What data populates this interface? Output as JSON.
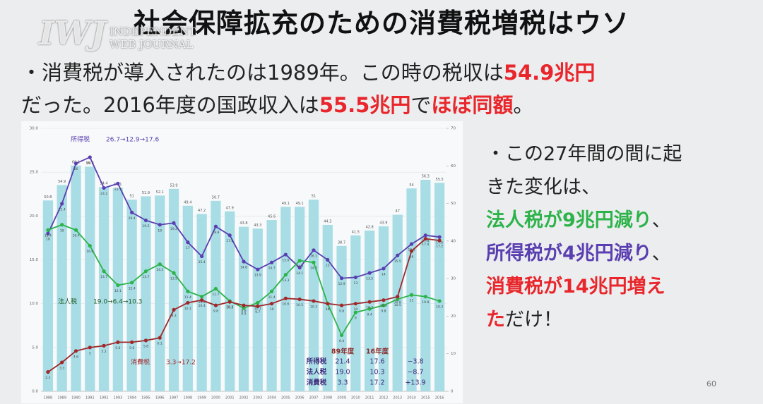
{
  "logo": {
    "mark": "IWJ",
    "line1": "INDEPENDENT",
    "line2": "WEB JOURNAL"
  },
  "title": "社会保障拡充のための消費税増税はウソ",
  "intro": [
    [
      {
        "text": "・消費税が導入されたのは1989年。この時の税収は"
      },
      {
        "text": "54.9兆円",
        "color": "#e8262b"
      }
    ],
    [
      {
        "text": "だった。2016年度の国政収入は"
      },
      {
        "text": "55.5兆円",
        "color": "#e8262b"
      },
      {
        "text": "で"
      },
      {
        "text": "ほぼ同額",
        "color": "#e8262b"
      },
      {
        "text": "。"
      }
    ]
  ],
  "side": [
    [
      {
        "text": "・この27年間の間に起"
      }
    ],
    [
      {
        "text": "きた変化は、"
      }
    ],
    [
      {
        "text": "法人税が9兆円減り",
        "color": "#2db34a"
      },
      {
        "text": "、"
      }
    ],
    [
      {
        "text": "所得税が4兆円減り",
        "color": "#5a3fb0"
      },
      {
        "text": "、"
      }
    ],
    [
      {
        "text": "消費税が14兆円増え",
        "color": "#e8262b"
      }
    ],
    [
      {
        "text": "た",
        "color": "#e8262b"
      },
      {
        "text": "だけ！"
      }
    ]
  ],
  "page_number": "60",
  "chart_data": {
    "type": "combo",
    "categories": [
      "1988",
      "1989",
      "1990",
      "1991",
      "1992",
      "1993",
      "1994",
      "1995",
      "1996",
      "1997",
      "1998",
      "1999",
      "2000",
      "2001",
      "2002",
      "2003",
      "2004",
      "2005",
      "2006",
      "2007",
      "2008",
      "2009",
      "2010",
      "2011",
      "2012",
      "2013",
      "2014",
      "2015",
      "2016"
    ],
    "series": [
      {
        "type": "bar",
        "axis": "y2",
        "color": "#a8dde6",
        "values": [
          50.8,
          54.9,
          60.1,
          59.8,
          54.4,
          54.1,
          51.0,
          51.9,
          52.1,
          53.9,
          49.4,
          47.2,
          50.7,
          47.9,
          43.8,
          43.3,
          45.6,
          49.1,
          49.1,
          51.0,
          44.3,
          38.7,
          41.5,
          42.8,
          43.9,
          47.0,
          54.0,
          56.3,
          55.5
        ]
      },
      {
        "type": "line",
        "color": "#5a3fb0",
        "values": [
          18.0,
          21.4,
          26.0,
          26.7,
          23.2,
          23.7,
          20.4,
          19.5,
          19.0,
          19.2,
          17.0,
          15.4,
          18.8,
          17.8,
          14.8,
          13.9,
          14.7,
          15.6,
          14.1,
          16.1,
          15.0,
          12.9,
          13.0,
          13.5,
          14.0,
          15.5,
          16.8,
          17.8,
          17.6
        ]
      },
      {
        "type": "line",
        "color": "#2db34a",
        "values": [
          18.4,
          19.0,
          18.4,
          16.6,
          13.7,
          12.1,
          12.4,
          13.7,
          14.5,
          13.5,
          11.4,
          10.8,
          11.7,
          10.3,
          9.5,
          10.1,
          11.4,
          13.3,
          14.9,
          14.7,
          10.0,
          6.4,
          9.0,
          9.4,
          9.8,
          10.5,
          11.0,
          10.8,
          10.3
        ]
      },
      {
        "type": "line",
        "color": "#a0282a",
        "values": [
          2.2,
          3.3,
          4.6,
          5.0,
          5.2,
          5.6,
          5.6,
          5.8,
          6.1,
          9.3,
          10.1,
          10.4,
          9.8,
          10.2,
          9.8,
          9.7,
          10.0,
          10.6,
          10.5,
          10.3,
          10.0,
          9.8,
          10.0,
          10.2,
          10.4,
          10.8,
          16.0,
          17.4,
          17.2
        ]
      }
    ],
    "ylim": [
      0,
      30
    ],
    "yticks": [
      {
        "value": 0,
        "label": "0.0"
      },
      {
        "value": 5,
        "label": "5.0"
      },
      {
        "value": 10,
        "label": "10.0"
      },
      {
        "value": 15,
        "label": "15.0"
      },
      {
        "value": 20,
        "label": "20.0"
      },
      {
        "value": 25,
        "label": "25.0"
      },
      {
        "value": 30,
        "label": "30.0"
      }
    ],
    "y2lim": [
      0,
      70
    ],
    "y2ticks": [
      0,
      10,
      20,
      30,
      40,
      50,
      60,
      70
    ],
    "annotations": [
      {
        "label": "所得税",
        "text": "26.7→12.9→17.6",
        "color": "#5a3fb0"
      },
      {
        "label": "法人税",
        "text": "19.0→6.4→10.3",
        "color": "#1f5e2a"
      },
      {
        "label": "消費税",
        "text": "3.3→17.2",
        "color": "#a0282a"
      }
    ],
    "table": {
      "header": [
        "89年度",
        "16年度"
      ],
      "rows": [
        [
          "所得税",
          "21.4",
          "17.6",
          "−3.8"
        ],
        [
          "法人税",
          "19.0",
          "10.3",
          "−8.7"
        ],
        [
          "消費税",
          "3.3",
          "17.2",
          "+13.9"
        ]
      ]
    }
  }
}
